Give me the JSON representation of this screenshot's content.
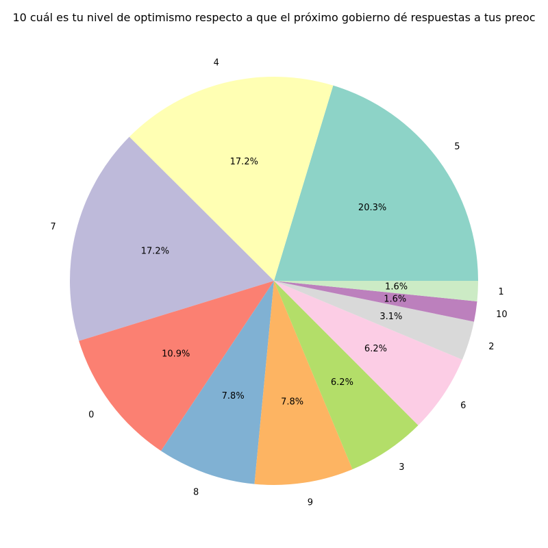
{
  "chart_data": {
    "type": "pie",
    "title": "10 cuál es tu nivel de optimismo respecto a que el próximo gobierno dé respuestas a tus preoc",
    "start_angle_deg": 0,
    "direction": "counterclockwise",
    "slices": [
      {
        "label": "5",
        "value": 20.3,
        "pct_label": "20.3%",
        "color": "#8dd3c7"
      },
      {
        "label": "4",
        "value": 17.2,
        "pct_label": "17.2%",
        "color": "#ffffb3"
      },
      {
        "label": "7",
        "value": 17.2,
        "pct_label": "17.2%",
        "color": "#bebada"
      },
      {
        "label": "0",
        "value": 10.9,
        "pct_label": "10.9%",
        "color": "#fb8072"
      },
      {
        "label": "8",
        "value": 7.8,
        "pct_label": "7.8%",
        "color": "#80b1d3"
      },
      {
        "label": "9",
        "value": 7.8,
        "pct_label": "7.8%",
        "color": "#fdb462"
      },
      {
        "label": "3",
        "value": 6.2,
        "pct_label": "6.2%",
        "color": "#b3de69"
      },
      {
        "label": "6",
        "value": 6.2,
        "pct_label": "6.2%",
        "color": "#fccde5"
      },
      {
        "label": "2",
        "value": 3.1,
        "pct_label": "3.1%",
        "color": "#d9d9d9"
      },
      {
        "label": "10",
        "value": 1.6,
        "pct_label": "1.6%",
        "color": "#bc80bd"
      },
      {
        "label": "1",
        "value": 1.6,
        "pct_label": "1.6%",
        "color": "#ccebc5"
      }
    ]
  }
}
